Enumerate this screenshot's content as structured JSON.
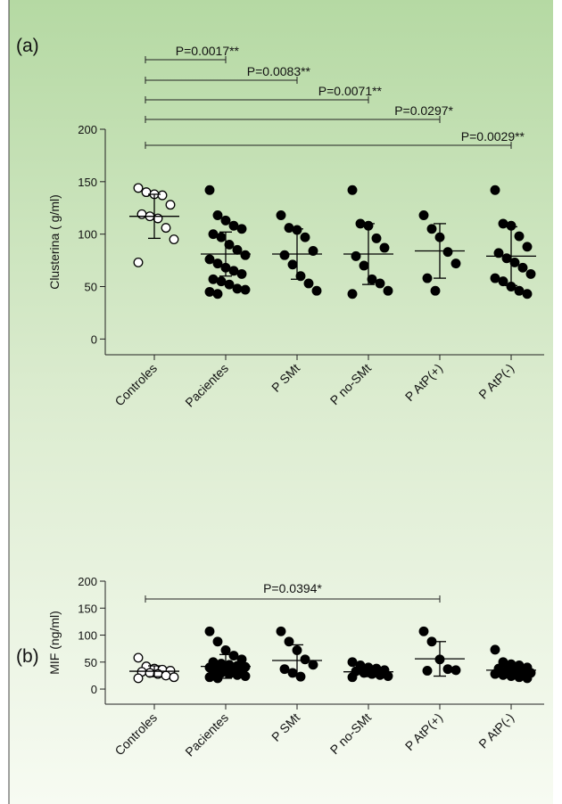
{
  "chart_data": [
    {
      "type": "dot",
      "panel_label": "(a)",
      "y_label": "Clusterina ( g/ml)",
      "categories": [
        "Controles",
        "Pacientes",
        "P SMt",
        "P no-SMt",
        "P AtP(+)",
        "P AtP(-)"
      ],
      "markers": [
        "open",
        "filled",
        "filled",
        "filled",
        "filled",
        "filled"
      ],
      "color": "#000000",
      "points": [
        [
          144,
          140,
          138,
          137,
          128,
          119,
          117,
          115,
          106,
          95,
          73
        ],
        [
          142,
          118,
          113,
          108,
          105,
          100,
          97,
          90,
          85,
          80,
          76,
          72,
          68,
          65,
          62,
          57,
          55,
          52,
          48,
          47,
          45,
          43
        ],
        [
          118,
          106,
          104,
          97,
          84,
          80,
          71,
          60,
          53,
          46
        ],
        [
          142,
          110,
          108,
          96,
          87,
          79,
          70,
          57,
          53,
          46,
          43
        ],
        [
          118,
          105,
          97,
          83,
          72,
          58,
          46
        ],
        [
          142,
          110,
          108,
          98,
          88,
          82,
          77,
          73,
          68,
          62,
          58,
          55,
          50,
          46,
          43
        ]
      ],
      "means": [
        117,
        81,
        81,
        81,
        84,
        79
      ],
      "sd": [
        21,
        21,
        24,
        29,
        26,
        28
      ],
      "ylim": [
        -15,
        200
      ],
      "yticks": [
        0,
        50,
        100,
        150,
        200
      ],
      "comparisons": [
        {
          "from": 0,
          "to": 1,
          "label": "P=0.0017**"
        },
        {
          "from": 0,
          "to": 2,
          "label": "P=0.0083**"
        },
        {
          "from": 0,
          "to": 3,
          "label": "P=0.0071**"
        },
        {
          "from": 0,
          "to": 4,
          "label": "P=0.0297*"
        },
        {
          "from": 0,
          "to": 5,
          "label": "P=0.0029**"
        }
      ]
    },
    {
      "type": "dot",
      "panel_label": "(b)",
      "y_label": "MIF (ng/ml)",
      "categories": [
        "Controles",
        "Pacientes",
        "P SMt",
        "P no-SMt",
        "P AtP(+)",
        "P AtP(-)"
      ],
      "markers": [
        "open",
        "filled",
        "filled",
        "filled",
        "filled",
        "filled"
      ],
      "color": "#000000",
      "points": [
        [
          58,
          42,
          38,
          36,
          34,
          32,
          30,
          28,
          25,
          22,
          20
        ],
        [
          107,
          88,
          72,
          62,
          55,
          50,
          47,
          45,
          43,
          41,
          40,
          38,
          36,
          35,
          33,
          31,
          30,
          28,
          26,
          24,
          22,
          20
        ],
        [
          107,
          88,
          72,
          55,
          45,
          37,
          30,
          23
        ],
        [
          50,
          44,
          40,
          38,
          35,
          33,
          30,
          28,
          26,
          24,
          22
        ],
        [
          107,
          88,
          55,
          37,
          35,
          34
        ],
        [
          73,
          50,
          46,
          44,
          40,
          38,
          35,
          33,
          31,
          30,
          28,
          26,
          24,
          22,
          20
        ]
      ],
      "means": [
        33,
        42,
        53,
        32,
        56,
        35
      ],
      "sd": [
        10,
        22,
        29,
        9,
        32,
        14
      ],
      "ylim": [
        -28,
        200
      ],
      "yticks": [
        0,
        50,
        100,
        150,
        200
      ],
      "comparisons": [
        {
          "from": 0,
          "to": 4,
          "label": "P=0.0394*"
        }
      ]
    }
  ]
}
